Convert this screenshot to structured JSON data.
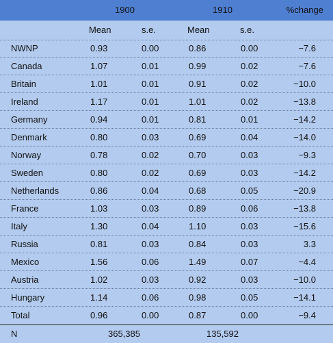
{
  "header": {
    "col_1900": "1900",
    "col_1910": "1910",
    "col_pct": "%change"
  },
  "subheader": {
    "mean_1900": "Mean",
    "se_1900": "s.e.",
    "mean_1910": "Mean",
    "se_1910": "s.e."
  },
  "rows": [
    {
      "label": "NWNP",
      "m1900": "0.93",
      "s1900": "0.00",
      "m1910": "0.86",
      "s1910": "0.00",
      "pct": "−7.6"
    },
    {
      "label": "Canada",
      "m1900": "1.07",
      "s1900": "0.01",
      "m1910": "0.99",
      "s1910": "0.02",
      "pct": "−7.6"
    },
    {
      "label": "Britain",
      "m1900": "1.01",
      "s1900": "0.01",
      "m1910": "0.91",
      "s1910": "0.02",
      "pct": "−10.0"
    },
    {
      "label": "Ireland",
      "m1900": "1.17",
      "s1900": "0.01",
      "m1910": "1.01",
      "s1910": "0.02",
      "pct": "−13.8"
    },
    {
      "label": "Germany",
      "m1900": "0.94",
      "s1900": "0.01",
      "m1910": "0.81",
      "s1910": "0.01",
      "pct": "−14.2"
    },
    {
      "label": "Denmark",
      "m1900": "0.80",
      "s1900": "0.03",
      "m1910": "0.69",
      "s1910": "0.04",
      "pct": "−14.0"
    },
    {
      "label": "Norway",
      "m1900": "0.78",
      "s1900": "0.02",
      "m1910": "0.70",
      "s1910": "0.03",
      "pct": "−9.3"
    },
    {
      "label": "Sweden",
      "m1900": "0.80",
      "s1900": "0.02",
      "m1910": "0.69",
      "s1910": "0.03",
      "pct": "−14.2"
    },
    {
      "label": "Netherlands",
      "m1900": "0.86",
      "s1900": "0.04",
      "m1910": "0.68",
      "s1910": "0.05",
      "pct": "−20.9"
    },
    {
      "label": "France",
      "m1900": "1.03",
      "s1900": "0.03",
      "m1910": "0.89",
      "s1910": "0.06",
      "pct": "−13.8"
    },
    {
      "label": "Italy",
      "m1900": "1.30",
      "s1900": "0.04",
      "m1910": "1.10",
      "s1910": "0.03",
      "pct": "−15.6"
    },
    {
      "label": "Russia",
      "m1900": "0.81",
      "s1900": "0.03",
      "m1910": "0.84",
      "s1910": "0.03",
      "pct": "3.3"
    },
    {
      "label": "Mexico",
      "m1900": "1.56",
      "s1900": "0.06",
      "m1910": "1.49",
      "s1910": "0.07",
      "pct": "−4.4"
    },
    {
      "label": "Austria",
      "m1900": "1.02",
      "s1900": "0.03",
      "m1910": "0.92",
      "s1910": "0.03",
      "pct": "−10.0"
    },
    {
      "label": "Hungary",
      "m1900": "1.14",
      "s1900": "0.06",
      "m1910": "0.98",
      "s1910": "0.05",
      "pct": "−14.1"
    },
    {
      "label": "Total",
      "m1900": "0.96",
      "s1900": "0.00",
      "m1910": "0.87",
      "s1910": "0.00",
      "pct": "−9.4"
    }
  ],
  "n_row": {
    "label": "N",
    "n1900": "365,385",
    "n1910": "135,592"
  },
  "colors": {
    "header_band": "#4f7fd1",
    "body_background": "#b3cbee"
  }
}
